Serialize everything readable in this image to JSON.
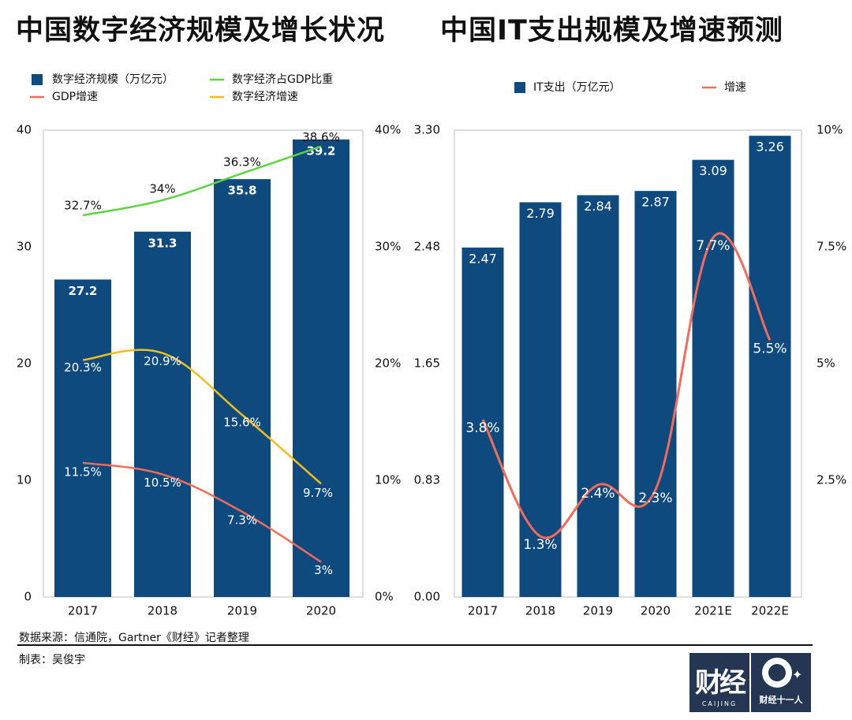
{
  "titles": {
    "left": "中国数字经济规模及增长状况",
    "right": "中国IT支出规模及增速预测"
  },
  "footer": {
    "source": "数据来源：信通院，Gartner《财经》记者整理",
    "maker": "制表：吴俊宇"
  },
  "logos": {
    "caijing_main": "财经",
    "caijing_sub": "CAIJING",
    "eleven_sub": "财经十一人"
  },
  "colors": {
    "bar": "#0e4a7e",
    "green": "#5fd343",
    "red": "#f26b5b",
    "yellow": "#f2bd1d",
    "logo_bg": "#243652"
  },
  "chart_data": [
    {
      "type": "bar",
      "title": "中国数字经济规模及增长状况",
      "categories": [
        "2017",
        "2018",
        "2019",
        "2020"
      ],
      "ylim": [
        0,
        40
      ],
      "y_ticks": [
        "0",
        "10",
        "20",
        "30",
        "40"
      ],
      "y2lim": [
        0,
        40
      ],
      "y2_ticks": [
        "0%",
        "10%",
        "20%",
        "30%",
        "40%"
      ],
      "legend_position": "top",
      "grid": false,
      "series": [
        {
          "name": "数字经济规模（万亿元）",
          "kind": "bar",
          "axis": "left",
          "values": [
            27.2,
            31.3,
            35.8,
            39.2
          ],
          "labels": [
            "27.2",
            "31.3",
            "35.8",
            "39.2"
          ]
        },
        {
          "name": "数字经济占GDP比重",
          "kind": "line",
          "axis": "right",
          "values": [
            32.7,
            34,
            36.3,
            38.6
          ],
          "labels": [
            "32.7%",
            "34%",
            "36.3%",
            "38.6%"
          ]
        },
        {
          "name": "GDP增速",
          "kind": "line",
          "axis": "right",
          "values": [
            11.5,
            10.5,
            7.3,
            3
          ],
          "labels": [
            "11.5%",
            "10.5%",
            "7.3%",
            "3%"
          ]
        },
        {
          "name": "数字经济增速",
          "kind": "line",
          "axis": "right",
          "values": [
            20.3,
            20.9,
            15.6,
            9.7
          ],
          "labels": [
            "20.3%",
            "20.9%",
            "15.6%",
            "9.7%"
          ]
        }
      ]
    },
    {
      "type": "bar",
      "title": "中国IT支出规模及增速预测",
      "categories": [
        "2017",
        "2018",
        "2019",
        "2020",
        "2021E",
        "2022E"
      ],
      "ylim": [
        0,
        3.3
      ],
      "y_ticks": [
        "0.00",
        "0.83",
        "1.65",
        "2.48",
        "3.30"
      ],
      "y2lim": [
        0,
        10
      ],
      "y2_ticks": [
        "",
        "2.5%",
        "5%",
        "7.5%",
        "10%"
      ],
      "legend_position": "top",
      "grid": false,
      "series": [
        {
          "name": "IT支出（万亿元）",
          "kind": "bar",
          "axis": "left",
          "values": [
            2.47,
            2.79,
            2.84,
            2.87,
            3.09,
            3.26
          ],
          "labels": [
            "2.47",
            "2.79",
            "2.84",
            "2.87",
            "3.09",
            "3.26"
          ]
        },
        {
          "name": "增速",
          "kind": "line",
          "axis": "right",
          "values": [
            3.8,
            1.3,
            2.4,
            2.3,
            7.7,
            5.5
          ],
          "labels": [
            "3.8%",
            "1.3%",
            "2.4%",
            "2.3%",
            "7.7%",
            "5.5%"
          ]
        }
      ]
    }
  ]
}
